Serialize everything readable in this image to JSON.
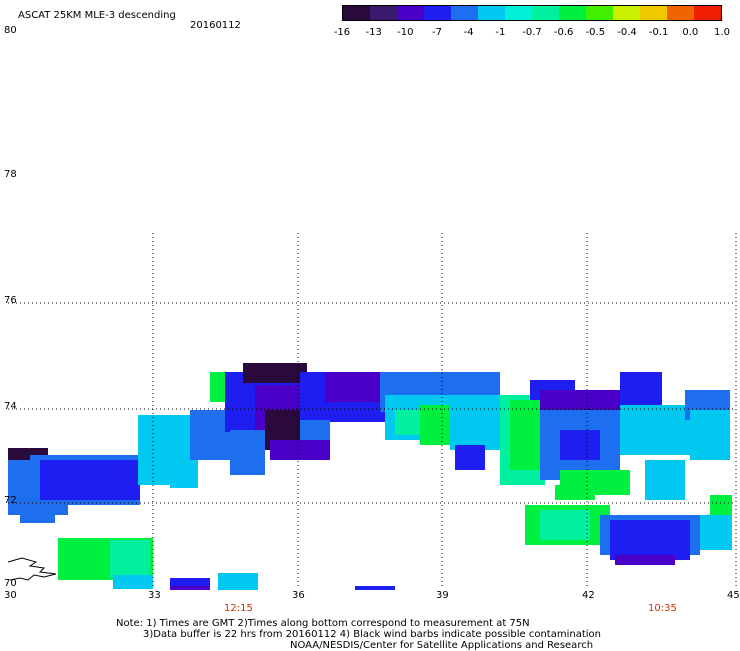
{
  "header": {
    "title": "ASCAT 25KM MLE-3 descending",
    "date": "20160112"
  },
  "colorbar": {
    "labels": [
      "-16",
      "-13",
      "-10",
      "-7",
      "-4",
      "-1",
      "-0.7",
      "-0.6",
      "-0.5",
      "-0.4",
      "-0.1",
      "0.0",
      "1.0"
    ],
    "colors": [
      "#2a0a3a",
      "#3a1a6e",
      "#4b00c8",
      "#1e1ef0",
      "#1e6ef0",
      "#00c8f0",
      "#00f0d8",
      "#00f0a0",
      "#00f040",
      "#40f000",
      "#c8f000",
      "#f0c800",
      "#f06400",
      "#f01e00"
    ]
  },
  "axes": {
    "lat_labels": [
      "80",
      "78",
      "76",
      "74",
      "72",
      "70"
    ],
    "lon_labels": [
      "30",
      "33",
      "36",
      "39",
      "42",
      "45"
    ]
  },
  "times": [
    "12:15",
    "10:35"
  ],
  "notes": [
    "Note: 1) Times are GMT 2)Times along bottom correspond to measurement at 75N",
    "3)Data buffer is 22 hrs from 20160112 4) Black wind barbs indicate possible contamination",
    "NOAA/NESDIS/Center for Satellite Applications and Research"
  ],
  "style": {
    "time_color": "#c83200",
    "grid_color": "#000000"
  }
}
